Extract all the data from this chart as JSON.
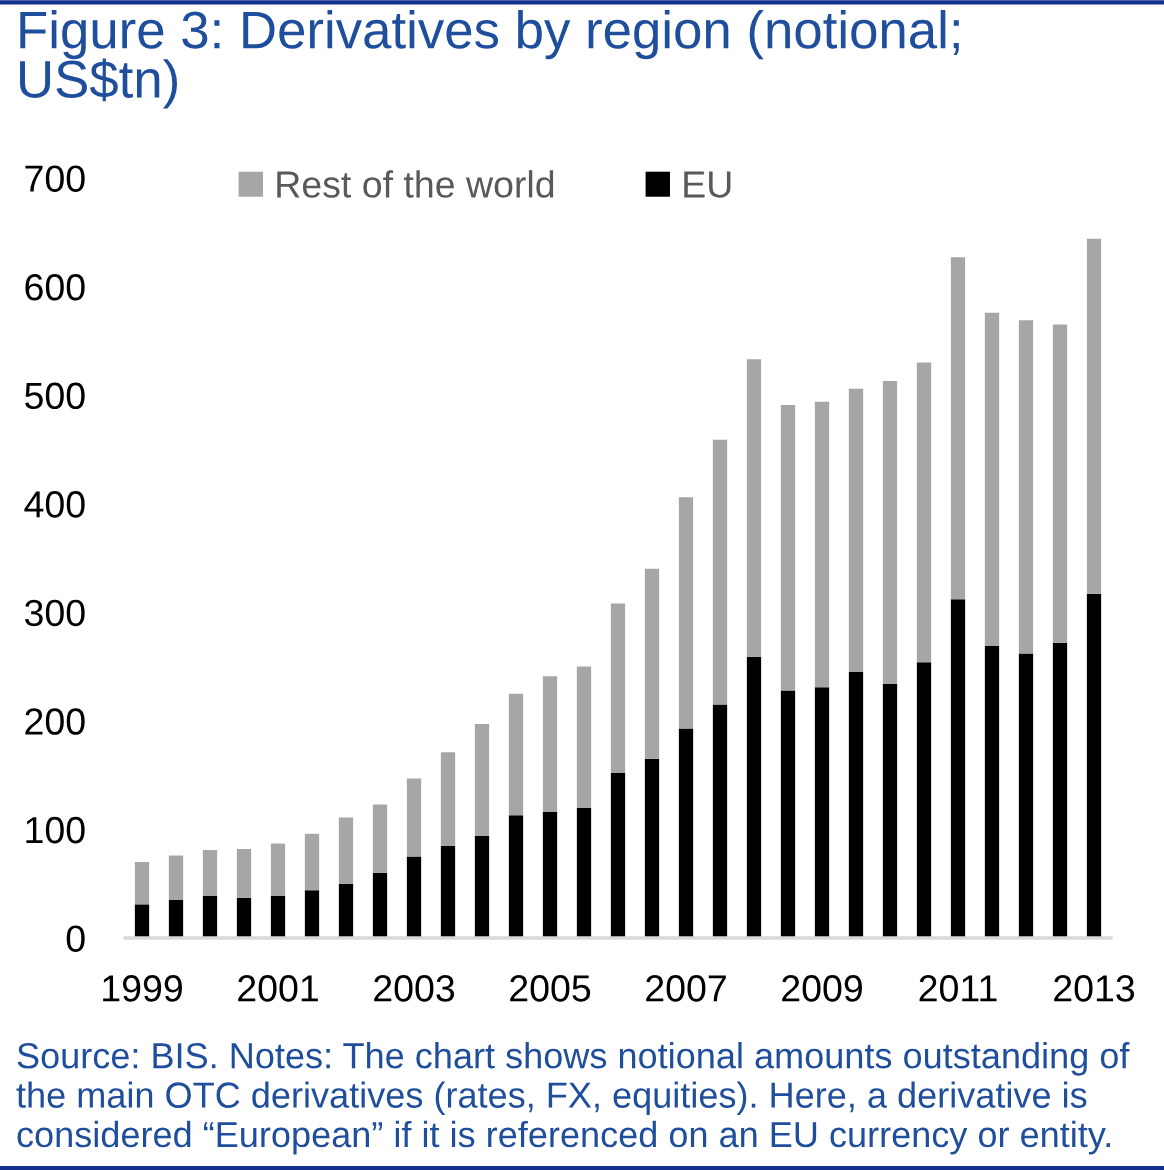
{
  "chart_data": {
    "type": "bar",
    "title": "Figure 3: Derivatives by region (notional; US$tn)",
    "categories": [
      "1999",
      null,
      null,
      null,
      "2001",
      null,
      null,
      null,
      "2003",
      null,
      null,
      null,
      "2005",
      null,
      null,
      null,
      "2007",
      null,
      null,
      null,
      "2009",
      null,
      null,
      null,
      "2011",
      null,
      null,
      null,
      "2013"
    ],
    "series": [
      {
        "name": "EU",
        "color": "#000000",
        "values": [
          31,
          35,
          39,
          37,
          39,
          44,
          50,
          60,
          75,
          85,
          94,
          113,
          116,
          120,
          152,
          165,
          193,
          215,
          259,
          228,
          231,
          245,
          234,
          254,
          312,
          269,
          262,
          272,
          317
        ]
      },
      {
        "name": "Rest of the world",
        "color": "#a6a6a6",
        "values": [
          39,
          41,
          42,
          45,
          48,
          52,
          61,
          63,
          72,
          86,
          103,
          112,
          125,
          130,
          156,
          175,
          213,
          244,
          274,
          263,
          263,
          261,
          279,
          276,
          315,
          307,
          307,
          293,
          327
        ]
      }
    ],
    "stacked": true,
    "ylim": [
      0,
      700
    ],
    "yticks": [
      0,
      100,
      200,
      300,
      400,
      500,
      600,
      700
    ],
    "legend": "top left",
    "annotations": [
      "Source: BIS. Notes: The chart shows notional amounts outstanding of the main OTC derivatives (rates, FX, equities). Here, a derivative is considered “European” if it is referenced on an EU currency or entity."
    ]
  }
}
